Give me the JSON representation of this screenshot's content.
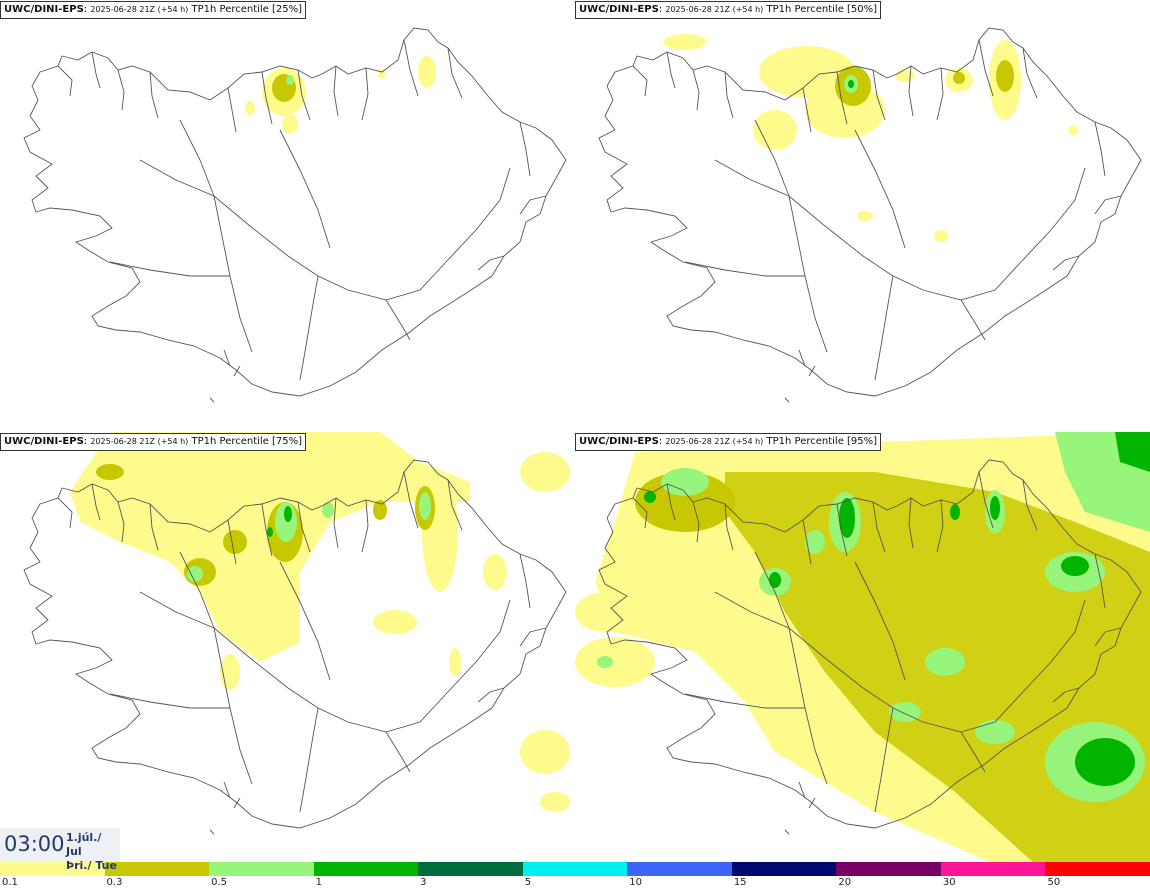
{
  "panels": [
    {
      "model": "UWC/DINI-EPS",
      "run": "2025-06-28 21Z (+54 h)",
      "field": "TP1h Percentile [25%]"
    },
    {
      "model": "UWC/DINI-EPS",
      "run": "2025-06-28 21Z (+54 h)",
      "field": "TP1h Percentile [50%]"
    },
    {
      "model": "UWC/DINI-EPS",
      "run": "2025-06-28 21Z (+54 h)",
      "field": "TP1h Percentile [75%]"
    },
    {
      "model": "UWC/DINI-EPS",
      "run": "2025-06-28 21Z (+54 h)",
      "field": "TP1h Percentile [95%]"
    }
  ],
  "valid_time": {
    "time": "03:00",
    "date_line1": "1.júl./ Jul",
    "date_line2": "Þri./ Tue"
  },
  "legend": {
    "colors": [
      "#fffa8c",
      "#c8c800",
      "#96f57a",
      "#00b400",
      "#006e3c",
      "#00f0f0",
      "#3c64f5",
      "#000a6e",
      "#780064",
      "#ff1496",
      "#ff0000"
    ],
    "labels": [
      "0.1",
      "0.3",
      "0.5",
      "1",
      "3",
      "5",
      "10",
      "15",
      "20",
      "30",
      "50"
    ]
  }
}
